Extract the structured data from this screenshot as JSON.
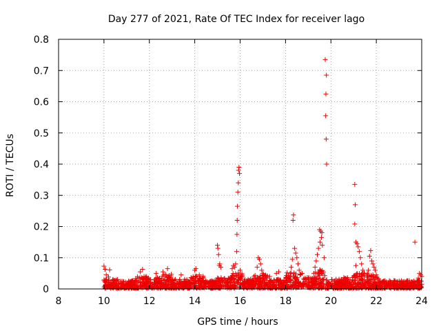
{
  "chart_data": {
    "type": "scatter",
    "title": "Day 277 of 2021, Rate Of TEC Index for receiver lago",
    "xlabel": "GPS time / hours",
    "ylabel": "ROTI / TECUs",
    "xlim": [
      8,
      24
    ],
    "ylim": [
      0,
      0.8
    ],
    "xticks": [
      "8",
      "10",
      "12",
      "14",
      "16",
      "18",
      "20",
      "22",
      "24"
    ],
    "yticks": [
      "0",
      "0.1",
      "0.2",
      "0.3",
      "0.4",
      "0.5",
      "0.6",
      "0.7",
      "0.8"
    ],
    "grid": true,
    "marker": "plus",
    "color": "#ee0000",
    "series": [
      {
        "name": "ROTI",
        "points": [
          [
            10.0,
            0.073
          ],
          [
            10.05,
            0.063
          ],
          [
            10.25,
            0.061
          ],
          [
            10.1,
            0.045
          ],
          [
            10.2,
            0.038
          ],
          [
            10.4,
            0.03
          ],
          [
            11.7,
            0.063
          ],
          [
            11.6,
            0.055
          ],
          [
            12.3,
            0.05
          ],
          [
            12.6,
            0.055
          ],
          [
            12.8,
            0.065
          ],
          [
            13.4,
            0.045
          ],
          [
            14.0,
            0.06
          ],
          [
            14.05,
            0.065
          ],
          [
            14.2,
            0.045
          ],
          [
            15.0,
            0.14
          ],
          [
            15.02,
            0.13
          ],
          [
            15.05,
            0.11
          ],
          [
            15.1,
            0.08
          ],
          [
            15.15,
            0.07
          ],
          [
            15.08,
            0.075
          ],
          [
            15.95,
            0.39
          ],
          [
            15.93,
            0.38
          ],
          [
            15.97,
            0.37
          ],
          [
            15.92,
            0.34
          ],
          [
            15.9,
            0.31
          ],
          [
            15.88,
            0.265
          ],
          [
            15.87,
            0.22
          ],
          [
            15.86,
            0.175
          ],
          [
            15.85,
            0.12
          ],
          [
            15.8,
            0.08
          ],
          [
            15.75,
            0.07
          ],
          [
            15.7,
            0.075
          ],
          [
            15.65,
            0.065
          ],
          [
            16.0,
            0.06
          ],
          [
            16.8,
            0.1
          ],
          [
            16.85,
            0.095
          ],
          [
            16.9,
            0.08
          ],
          [
            16.75,
            0.07
          ],
          [
            16.95,
            0.06
          ],
          [
            17.0,
            0.05
          ],
          [
            17.6,
            0.05
          ],
          [
            17.7,
            0.055
          ],
          [
            17.3,
            0.04
          ],
          [
            18.35,
            0.237
          ],
          [
            18.33,
            0.22
          ],
          [
            18.4,
            0.13
          ],
          [
            18.45,
            0.115
          ],
          [
            18.5,
            0.1
          ],
          [
            18.3,
            0.095
          ],
          [
            18.55,
            0.08
          ],
          [
            18.6,
            0.06
          ],
          [
            18.25,
            0.07
          ],
          [
            18.2,
            0.05
          ],
          [
            19.5,
            0.19
          ],
          [
            19.55,
            0.185
          ],
          [
            19.6,
            0.18
          ],
          [
            19.58,
            0.165
          ],
          [
            19.52,
            0.15
          ],
          [
            19.62,
            0.14
          ],
          [
            19.45,
            0.13
          ],
          [
            19.4,
            0.11
          ],
          [
            19.35,
            0.09
          ],
          [
            19.3,
            0.07
          ],
          [
            19.25,
            0.05
          ],
          [
            19.7,
            0.1
          ],
          [
            19.75,
            0.735
          ],
          [
            19.8,
            0.685
          ],
          [
            19.78,
            0.625
          ],
          [
            19.77,
            0.555
          ],
          [
            19.79,
            0.48
          ],
          [
            19.81,
            0.4
          ],
          [
            21.05,
            0.335
          ],
          [
            21.07,
            0.27
          ],
          [
            21.05,
            0.208
          ],
          [
            21.1,
            0.15
          ],
          [
            21.15,
            0.145
          ],
          [
            21.2,
            0.135
          ],
          [
            21.1,
            0.075
          ],
          [
            21.25,
            0.12
          ],
          [
            21.3,
            0.1
          ],
          [
            21.35,
            0.08
          ],
          [
            21.4,
            0.06
          ],
          [
            21.45,
            0.05
          ],
          [
            21.75,
            0.123
          ],
          [
            21.7,
            0.105
          ],
          [
            21.8,
            0.09
          ],
          [
            21.85,
            0.08
          ],
          [
            21.9,
            0.07
          ],
          [
            21.65,
            0.06
          ],
          [
            21.6,
            0.05
          ],
          [
            21.95,
            0.06
          ],
          [
            22.0,
            0.045
          ],
          [
            23.7,
            0.15
          ],
          [
            23.9,
            0.05
          ],
          [
            23.95,
            0.045
          ],
          [
            24.0,
            0.04
          ],
          [
            23.85,
            0.035
          ]
        ],
        "bands": [
          [
            10.0,
            10.6,
            0.03
          ],
          [
            10.6,
            11.4,
            0.025
          ],
          [
            11.4,
            12.0,
            0.04
          ],
          [
            12.0,
            12.5,
            0.035
          ],
          [
            12.5,
            13.0,
            0.045
          ],
          [
            13.0,
            13.8,
            0.03
          ],
          [
            13.8,
            14.4,
            0.04
          ],
          [
            14.4,
            15.0,
            0.025
          ],
          [
            15.0,
            15.6,
            0.035
          ],
          [
            15.6,
            16.1,
            0.05
          ],
          [
            16.1,
            16.6,
            0.03
          ],
          [
            16.6,
            17.2,
            0.045
          ],
          [
            17.2,
            18.0,
            0.03
          ],
          [
            18.0,
            18.8,
            0.05
          ],
          [
            18.8,
            19.3,
            0.035
          ],
          [
            19.3,
            19.8,
            0.06
          ],
          [
            19.8,
            20.5,
            0.03
          ],
          [
            20.5,
            21.0,
            0.035
          ],
          [
            21.0,
            21.5,
            0.05
          ],
          [
            21.5,
            22.1,
            0.045
          ],
          [
            22.1,
            23.0,
            0.025
          ],
          [
            23.0,
            24.0,
            0.025
          ]
        ]
      }
    ]
  }
}
